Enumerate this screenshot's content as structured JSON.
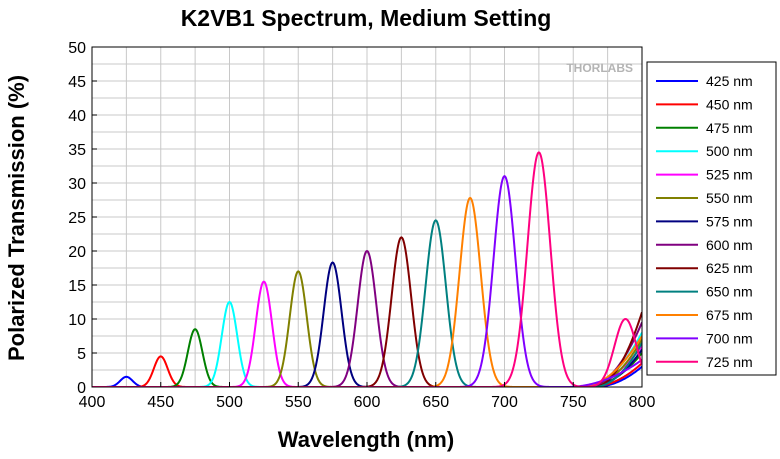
{
  "chart_data": {
    "type": "line",
    "title": "K2VB1 Spectrum, Medium Setting",
    "xlabel": "Wavelength (nm)",
    "ylabel": "Polarized Transmission (%)",
    "xlim": [
      400,
      800
    ],
    "ylim": [
      0,
      50
    ],
    "xticks": [
      "400",
      "450",
      "500",
      "550",
      "600",
      "650",
      "700",
      "750",
      "800"
    ],
    "yticks": [
      "0",
      "5",
      "10",
      "15",
      "20",
      "25",
      "30",
      "35",
      "40",
      "45",
      "50"
    ],
    "grid": true,
    "legend_position": "right",
    "watermark": "THORLABS",
    "series": [
      {
        "name": "425 nm",
        "color": "#0000ff",
        "center": 425,
        "peak": 1.5,
        "sigma": 4.5,
        "tail_start": 765,
        "tail_max": 3.0
      },
      {
        "name": "450 nm",
        "color": "#ff0000",
        "center": 450,
        "peak": 4.5,
        "sigma": 5.0,
        "tail_start": 762,
        "tail_max": 3.5
      },
      {
        "name": "475 nm",
        "color": "#008000",
        "center": 475,
        "peak": 8.5,
        "sigma": 5.3,
        "tail_start": 760,
        "tail_max": 5.0
      },
      {
        "name": "500 nm",
        "color": "#00ffff",
        "center": 500,
        "peak": 12.5,
        "sigma": 5.6,
        "tail_start": 758,
        "tail_max": 8.0
      },
      {
        "name": "525 nm",
        "color": "#ff00ff",
        "center": 525,
        "peak": 15.5,
        "sigma": 5.9,
        "tail_start": 755,
        "tail_max": 6.0
      },
      {
        "name": "550 nm",
        "color": "#808000",
        "center": 550,
        "peak": 17.0,
        "sigma": 6.2,
        "tail_start": 760,
        "tail_max": 7.0
      },
      {
        "name": "575 nm",
        "color": "#000080",
        "center": 575,
        "peak": 18.3,
        "sigma": 6.5,
        "tail_start": 762,
        "tail_max": 5.5
      },
      {
        "name": "600 nm",
        "color": "#800080",
        "center": 600,
        "peak": 20.0,
        "sigma": 6.8,
        "tail_start": 760,
        "tail_max": 9.5
      },
      {
        "name": "625 nm",
        "color": "#800000",
        "center": 625,
        "peak": 22.0,
        "sigma": 7.1,
        "tail_start": 765,
        "tail_max": 11.0
      },
      {
        "name": "650 nm",
        "color": "#008080",
        "center": 650,
        "peak": 24.5,
        "sigma": 7.4,
        "tail_start": 765,
        "tail_max": 6.5
      },
      {
        "name": "675 nm",
        "color": "#ff8000",
        "center": 675,
        "peak": 27.8,
        "sigma": 7.7,
        "tail_start": 755,
        "tail_max": 7.5
      },
      {
        "name": "700 nm",
        "color": "#8000ff",
        "center": 700,
        "peak": 31.0,
        "sigma": 8.0,
        "tail_start": 745,
        "tail_max": 4.0
      },
      {
        "name": "725 nm",
        "color": "#ff0080",
        "center": 725,
        "peak": 34.5,
        "sigma": 8.3,
        "second_center": 788,
        "second_peak": 10.0,
        "second_sigma": 8.0
      }
    ]
  }
}
